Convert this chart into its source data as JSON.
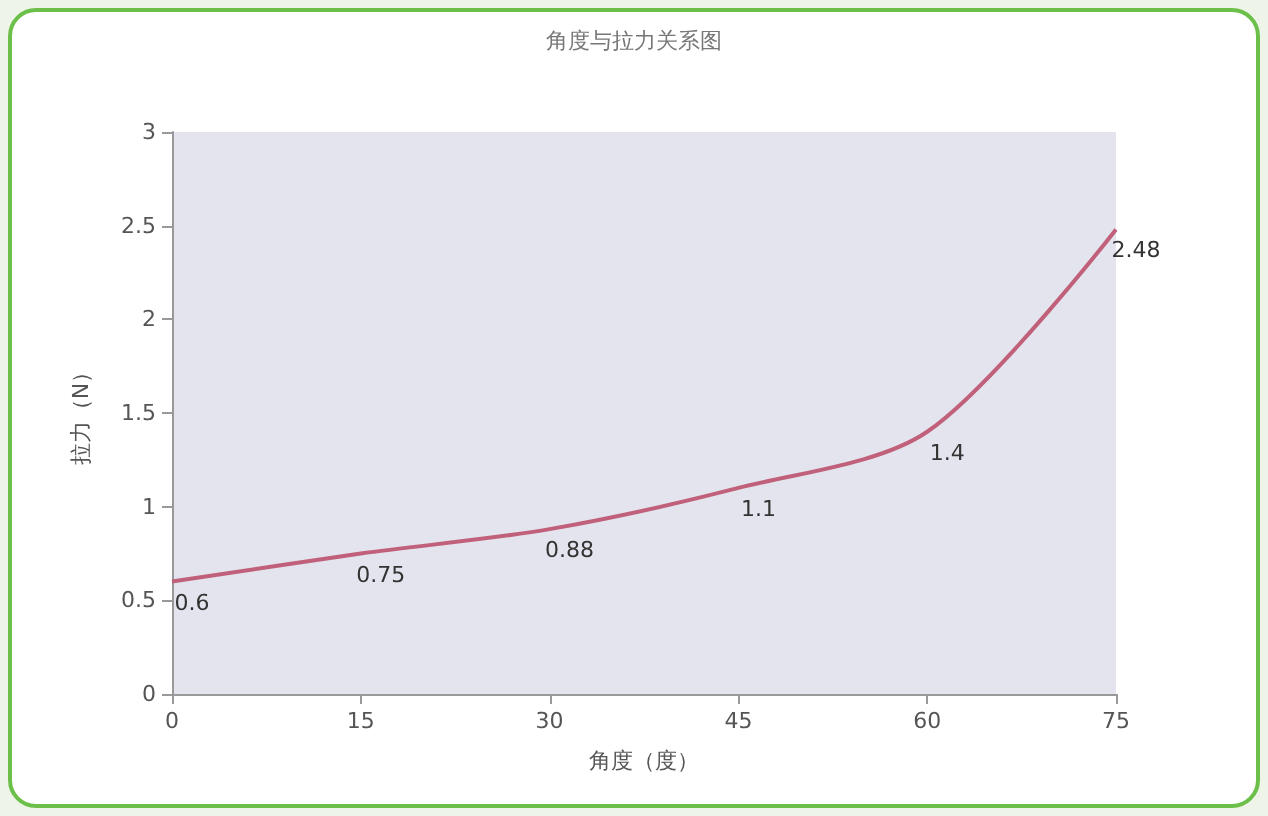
{
  "chart_data": {
    "type": "line",
    "title": "角度与拉力关系图",
    "xlabel": "角度（度）",
    "ylabel": "拉力（N）",
    "x": [
      0,
      15,
      30,
      45,
      60,
      75
    ],
    "series": [
      {
        "color": "#c0607a",
        "values": [
          0.6,
          0.75,
          0.88,
          1.1,
          1.4,
          2.48
        ]
      }
    ],
    "xlim": [
      0,
      75
    ],
    "xticks": [
      0,
      15,
      30,
      45,
      60,
      75
    ],
    "ylim": [
      0,
      3
    ],
    "yticks": [
      0,
      0.5,
      1,
      1.5,
      2,
      2.5,
      3
    ],
    "data_labels": true,
    "grid": false,
    "marker": "none",
    "line_style": "solid"
  }
}
